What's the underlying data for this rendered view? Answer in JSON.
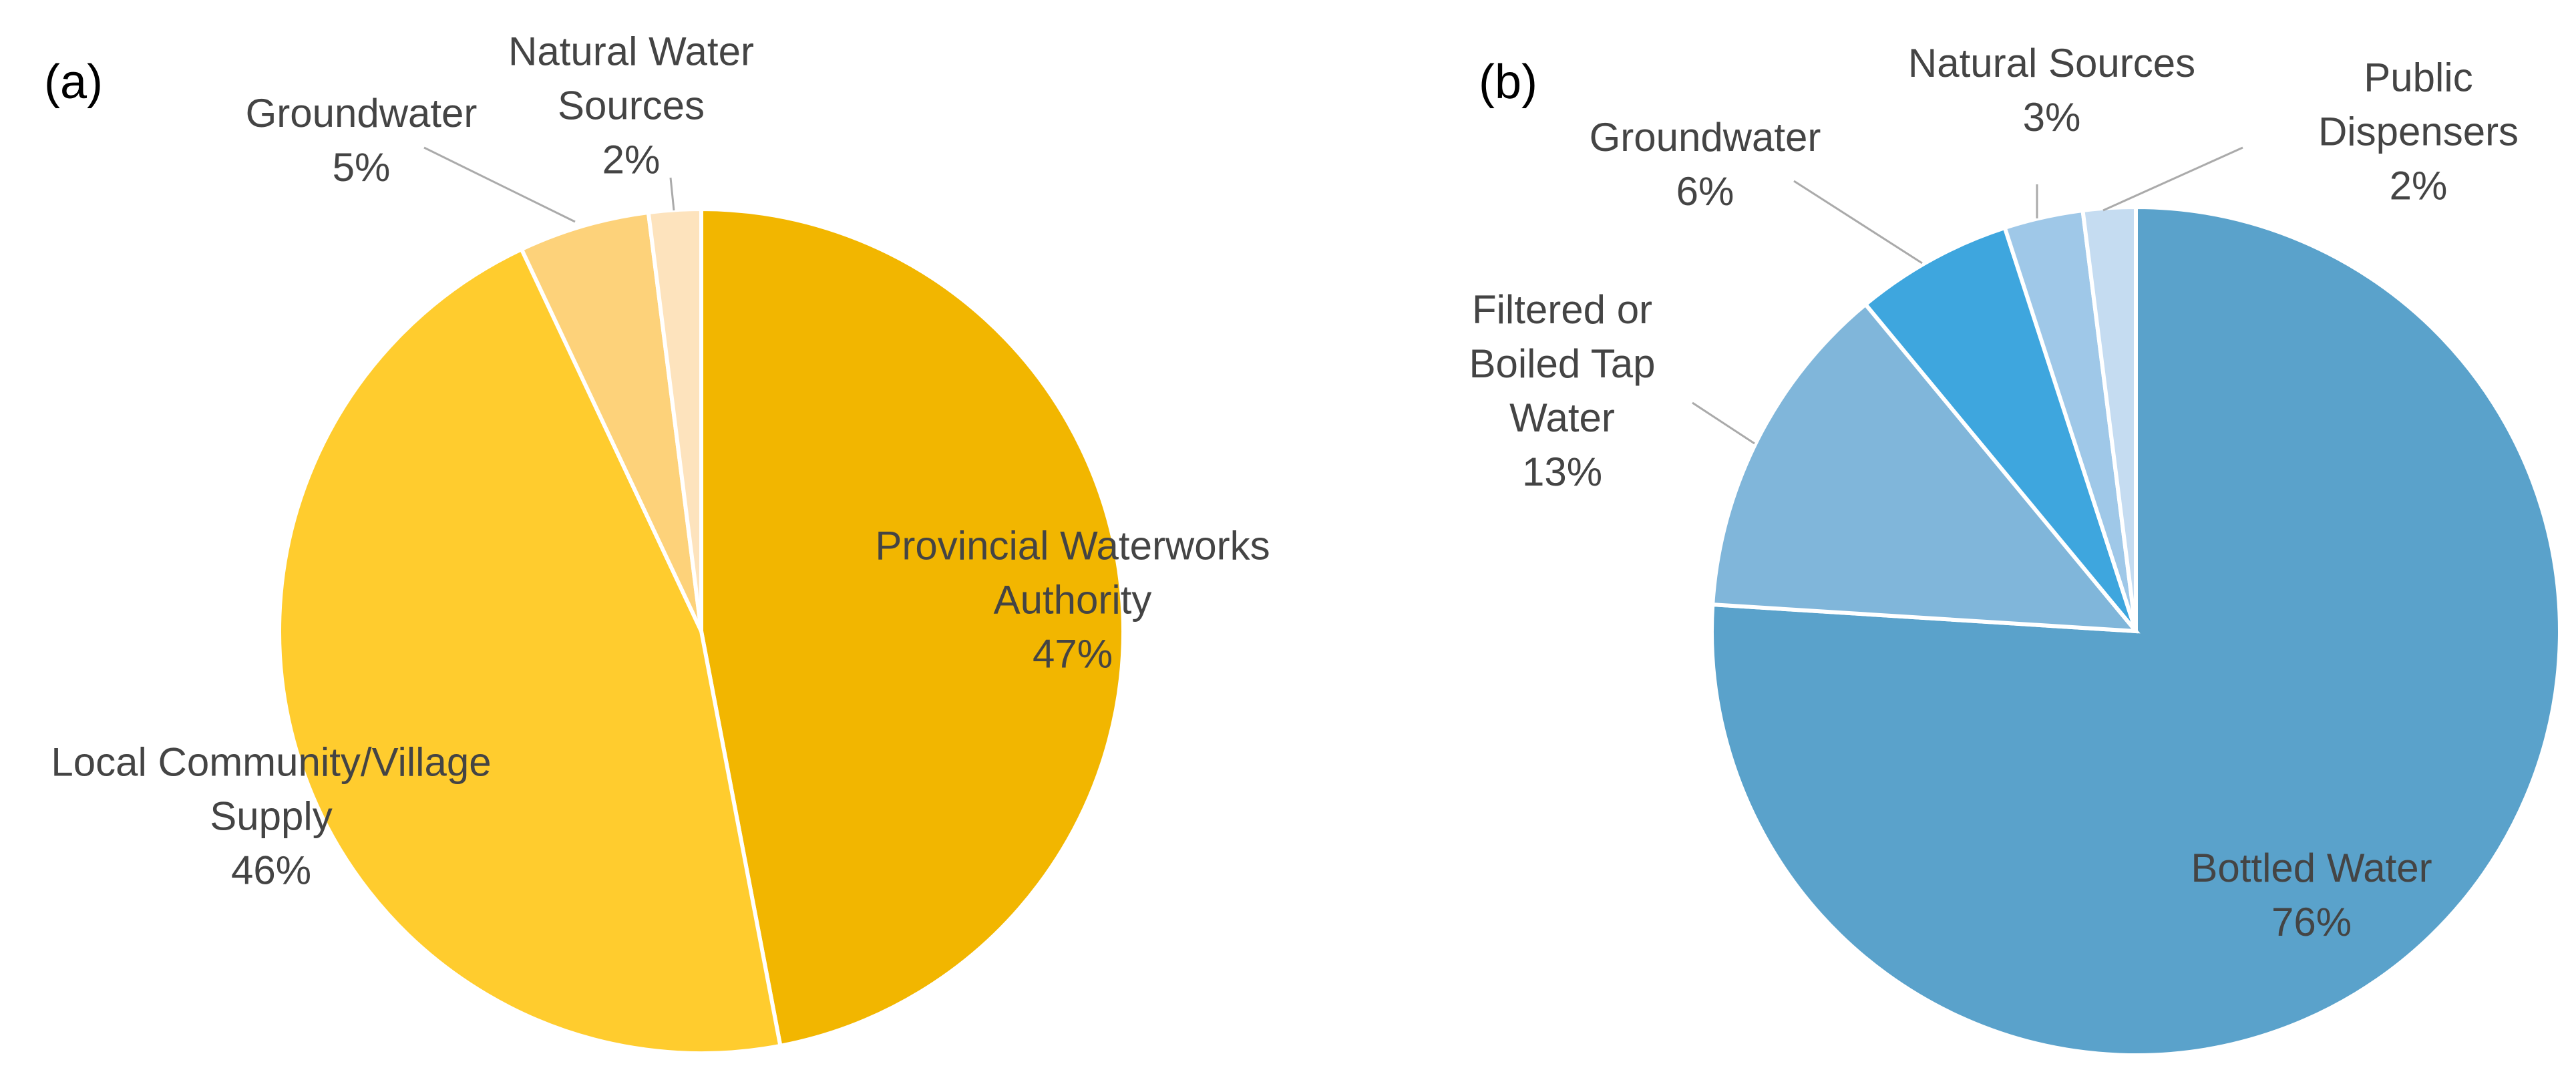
{
  "chart_data": [
    {
      "type": "pie",
      "label": "(a)",
      "categories": [
        "Provincial Waterworks Authority",
        "Local Community/Village Supply",
        "Groundwater",
        "Natural Water Sources"
      ],
      "values": [
        47,
        46,
        5,
        2
      ],
      "value_labels": [
        "47%",
        "46%",
        "5%",
        "2%"
      ],
      "colors": [
        "#f2b600",
        "#ffcc2e",
        "#fdd27a",
        "#fde3bd"
      ]
    },
    {
      "type": "pie",
      "label": "(b)",
      "categories": [
        "Bottled Water",
        "Filtered or Boiled Tap Water",
        "Groundwater",
        "Natural Sources",
        "Public Dispensers"
      ],
      "values": [
        76,
        13,
        6,
        3,
        2
      ],
      "value_labels": [
        "76%",
        "13%",
        "6%",
        "3%",
        "2%"
      ],
      "colors": [
        "#5aa2cb",
        "#80b6da",
        "#3ea6de",
        "#9fc8e8",
        "#c5dcf1"
      ]
    }
  ]
}
